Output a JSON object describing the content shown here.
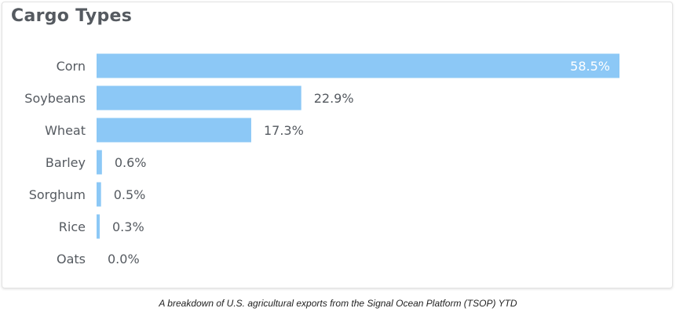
{
  "title": "Cargo Types",
  "caption": "A breakdown of U.S. agricultural exports from the Signal Ocean Platform (TSOP) YTD",
  "chart_data": {
    "type": "bar",
    "orientation": "horizontal",
    "categories": [
      "Corn",
      "Soybeans",
      "Wheat",
      "Barley",
      "Sorghum",
      "Rice",
      "Oats"
    ],
    "values": [
      58.5,
      22.9,
      17.3,
      0.6,
      0.5,
      0.3,
      0.0
    ],
    "value_labels": [
      "58.5%",
      "22.9%",
      "17.3%",
      "0.6%",
      "0.5%",
      "0.3%",
      "0.0%"
    ],
    "title": "Cargo Types",
    "xlabel": "",
    "ylabel": "",
    "xlim": [
      0,
      58.5
    ],
    "grid": false,
    "bar_color": "#8cc8f6",
    "label_color": "#555a60",
    "inner_label_color": "#ffffff"
  }
}
